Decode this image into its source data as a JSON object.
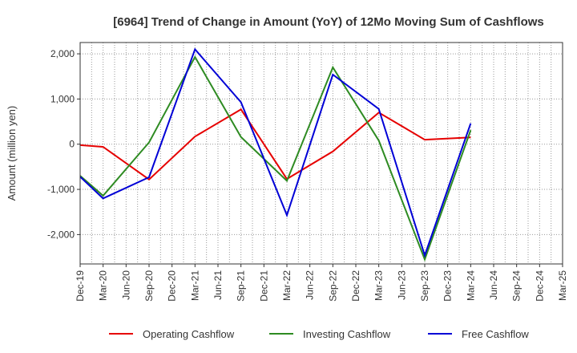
{
  "chart_data": {
    "type": "line",
    "title": "[6964]  Trend of Change in Amount (YoY) of 12Mo Moving Sum of Cashflows",
    "xlabel": "",
    "ylabel": "Amount (million yen)",
    "ylim": [
      -2650,
      2250
    ],
    "yticks": [
      -2000,
      -1000,
      0,
      1000,
      2000
    ],
    "ytick_labels": [
      "-2,000",
      "-1,000",
      "0",
      "1,000",
      "2,000"
    ],
    "categories": [
      "Dec-19",
      "Mar-20",
      "Jun-20",
      "Sep-20",
      "Dec-20",
      "Mar-21",
      "Jun-21",
      "Sep-21",
      "Dec-21",
      "Mar-22",
      "Jun-22",
      "Sep-22",
      "Dec-22",
      "Mar-23",
      "Jun-23",
      "Sep-23",
      "Dec-23",
      "Mar-24",
      "Jun-24",
      "Sep-24",
      "Dec-24",
      "Mar-25"
    ],
    "grid": true,
    "legend_position": "bottom",
    "series": [
      {
        "name": "Operating Cashflow",
        "color": "#e60000",
        "points": [
          {
            "x": "Dec-19",
            "y": -20
          },
          {
            "x": "Mar-20",
            "y": -60
          },
          {
            "x": "Sep-20",
            "y": -780
          },
          {
            "x": "Mar-21",
            "y": 170
          },
          {
            "x": "Sep-21",
            "y": 770
          },
          {
            "x": "Mar-22",
            "y": -770
          },
          {
            "x": "Sep-22",
            "y": -160
          },
          {
            "x": "Mar-23",
            "y": 700
          },
          {
            "x": "Sep-23",
            "y": 100
          },
          {
            "x": "Mar-24",
            "y": 150
          }
        ]
      },
      {
        "name": "Investing Cashflow",
        "color": "#2e8b22",
        "points": [
          {
            "x": "Dec-19",
            "y": -700
          },
          {
            "x": "Mar-20",
            "y": -1140
          },
          {
            "x": "Sep-20",
            "y": 40
          },
          {
            "x": "Mar-21",
            "y": 1930
          },
          {
            "x": "Sep-21",
            "y": 160
          },
          {
            "x": "Mar-22",
            "y": -810
          },
          {
            "x": "Sep-22",
            "y": 1700
          },
          {
            "x": "Mar-23",
            "y": 80
          },
          {
            "x": "Sep-23",
            "y": -2550
          },
          {
            "x": "Mar-24",
            "y": 310
          }
        ]
      },
      {
        "name": "Free Cashflow",
        "color": "#0000d6",
        "points": [
          {
            "x": "Dec-19",
            "y": -720
          },
          {
            "x": "Mar-20",
            "y": -1200
          },
          {
            "x": "Sep-20",
            "y": -730
          },
          {
            "x": "Mar-21",
            "y": 2100
          },
          {
            "x": "Sep-21",
            "y": 930
          },
          {
            "x": "Mar-22",
            "y": -1570
          },
          {
            "x": "Sep-22",
            "y": 1540
          },
          {
            "x": "Mar-23",
            "y": 780
          },
          {
            "x": "Sep-23",
            "y": -2460
          },
          {
            "x": "Mar-24",
            "y": 460
          }
        ]
      }
    ]
  }
}
